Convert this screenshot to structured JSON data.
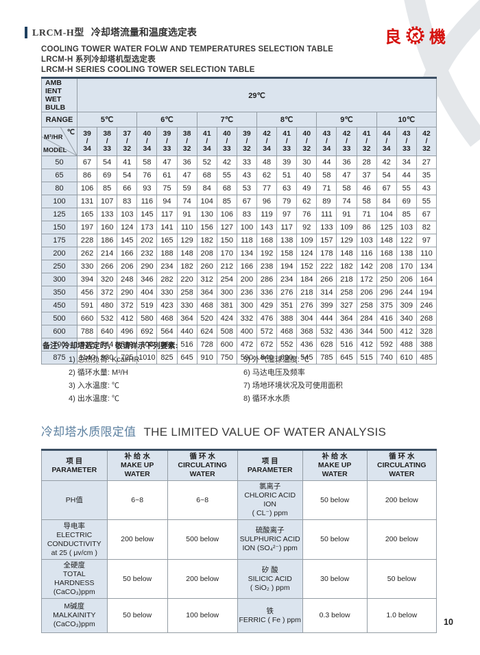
{
  "header": {
    "model_tag": "LRCM-H型",
    "title_cn": "冷却塔流量和温度选定表",
    "logo_left": "良",
    "logo_right": "機"
  },
  "titles": {
    "line1": "COOLING TOWER WATER FOLW AND TEMPERATURES SELECTION TABLE",
    "line2": "LRCM-H 系列冷却塔机型选定表",
    "line3": "LRCM-H SERIES COOLING TOWER SELECTION TABLE"
  },
  "selection_table": {
    "ambient_label": "AMB IENT\nWET BULB",
    "ambient_value": "29℃",
    "range_label": "RANGE",
    "range_temps": [
      "5℃",
      "6℃",
      "7℃",
      "8℃",
      "9℃",
      "10℃"
    ],
    "corner": {
      "flow": "M³/HR",
      "temp": "℃",
      "model": "MODEL"
    },
    "temp_pairs": [
      "39/34",
      "38/33",
      "37/32",
      "40/34",
      "39/33",
      "38/32",
      "41/34",
      "40/33",
      "39/32",
      "42/34",
      "41/33",
      "40/32",
      "43/34",
      "42/33",
      "41/32",
      "44/34",
      "43/33",
      "42/32"
    ],
    "rows": [
      {
        "model": "50",
        "values": [
          67,
          54,
          41,
          58,
          47,
          36,
          52,
          42,
          33,
          48,
          39,
          30,
          44,
          36,
          28,
          42,
          34,
          27
        ]
      },
      {
        "model": "65",
        "values": [
          86,
          69,
          54,
          76,
          61,
          47,
          68,
          55,
          43,
          62,
          51,
          40,
          58,
          47,
          37,
          54,
          44,
          35
        ]
      },
      {
        "model": "80",
        "values": [
          106,
          85,
          66,
          93,
          75,
          59,
          84,
          68,
          53,
          77,
          63,
          49,
          71,
          58,
          46,
          67,
          55,
          43
        ]
      },
      {
        "model": "100",
        "values": [
          131,
          107,
          83,
          116,
          94,
          74,
          104,
          85,
          67,
          96,
          79,
          62,
          89,
          74,
          58,
          84,
          69,
          55
        ]
      },
      {
        "model": "125",
        "values": [
          165,
          133,
          103,
          145,
          117,
          91,
          130,
          106,
          83,
          119,
          97,
          76,
          111,
          91,
          71,
          104,
          85,
          67
        ]
      },
      {
        "model": "150",
        "values": [
          197,
          160,
          124,
          173,
          141,
          110,
          156,
          127,
          100,
          143,
          117,
          92,
          133,
          109,
          86,
          125,
          103,
          82
        ]
      },
      {
        "model": "175",
        "values": [
          228,
          186,
          145,
          202,
          165,
          129,
          182,
          150,
          118,
          168,
          138,
          109,
          157,
          129,
          103,
          148,
          122,
          97
        ]
      },
      {
        "model": "200",
        "values": [
          262,
          214,
          166,
          232,
          188,
          148,
          208,
          170,
          134,
          192,
          158,
          124,
          178,
          148,
          116,
          168,
          138,
          110
        ]
      },
      {
        "model": "250",
        "values": [
          330,
          266,
          206,
          290,
          234,
          182,
          260,
          212,
          166,
          238,
          194,
          152,
          222,
          182,
          142,
          208,
          170,
          134
        ]
      },
      {
        "model": "300",
        "values": [
          394,
          320,
          248,
          346,
          282,
          220,
          312,
          254,
          200,
          286,
          234,
          184,
          266,
          218,
          172,
          250,
          206,
          164
        ]
      },
      {
        "model": "350",
        "values": [
          456,
          372,
          290,
          404,
          330,
          258,
          364,
          300,
          236,
          336,
          276,
          218,
          314,
          258,
          206,
          296,
          244,
          194
        ]
      },
      {
        "model": "450",
        "values": [
          591,
          480,
          372,
          519,
          423,
          330,
          468,
          381,
          300,
          429,
          351,
          276,
          399,
          327,
          258,
          375,
          309,
          246
        ]
      },
      {
        "model": "500",
        "values": [
          660,
          532,
          412,
          580,
          468,
          364,
          520,
          424,
          332,
          476,
          388,
          304,
          444,
          364,
          284,
          416,
          340,
          268
        ]
      },
      {
        "model": "600",
        "values": [
          788,
          640,
          496,
          692,
          564,
          440,
          624,
          508,
          400,
          572,
          468,
          368,
          532,
          436,
          344,
          500,
          412,
          328
        ]
      },
      {
        "model": "700",
        "values": [
          912,
          744,
          580,
          808,
          660,
          516,
          728,
          600,
          472,
          672,
          552,
          436,
          628,
          516,
          412,
          592,
          488,
          388
        ]
      },
      {
        "model": "875",
        "values": [
          1140,
          930,
          725,
          1010,
          825,
          645,
          910,
          750,
          590,
          840,
          690,
          545,
          785,
          645,
          515,
          740,
          610,
          485
        ]
      }
    ]
  },
  "notes": {
    "heading": "备注:  冷却塔选定时，敬请详示下列要素:",
    "left": [
      "1) 总热负荷: Kcal/HR",
      "2) 循环水量: M³/H",
      "3) 入水温度: ℃",
      "4) 出水温度: ℃"
    ],
    "right": [
      "5) 外气湿球温度: ℃",
      "6) 马达电压及频率",
      "7) 场地环境状况及可使用面积",
      "8) 循环水水质"
    ]
  },
  "water_analysis": {
    "title_cn": "冷却塔水质限定值",
    "title_en": "THE LIMITED VALUE OF WATER ANALYSIS",
    "headers": [
      "项 目\nPARAMETER",
      "补 给 水\nMAKE UP\nWATER",
      "循 环 水\nCIRCULATING\nWATER",
      "项 目\nPARAMETER",
      "补 给 水\nMAKE UP\nWATER",
      "循 环 水\nCIRCULATING\nWATER"
    ],
    "rows": [
      [
        "PH值",
        "6~8",
        "6~8",
        "氯离子\nCHLORIC ACID ION\n( CL⁻) ppm",
        "50 below",
        "200 below"
      ],
      [
        "导电率\nELECTRIC\nCONDUCTIVITY\nat 25 ( μv/cm )",
        "200 below",
        "500 below",
        "硫酸离子\nSULPHURIC ACID\nION (SO₄²⁻) ppm",
        "50 below",
        "200 below"
      ],
      [
        "全硬度\nTOTAL HARDNESS\n(CaCO₃)ppm",
        "50 below",
        "200 below",
        "矽 酸\nSILICIC ACID\n( SiO₂ ) ppm",
        "30 below",
        "50 below"
      ],
      [
        "M碱度\nMALKAINITY\n(CaCO₃)ppm",
        "50 below",
        "100 below",
        "铁\nFERRIC ( Fe ) ppm",
        "0.3 below",
        "1.0 below"
      ]
    ]
  },
  "page": {
    "number": "10"
  },
  "colors": {
    "accent_red": "#d5120e",
    "header_bar_blue": "#1f4060",
    "table_header_bg": "#dbe4ee",
    "section_title_blue": "#5c80a0",
    "watermark_gray": "#e4e7ea"
  }
}
